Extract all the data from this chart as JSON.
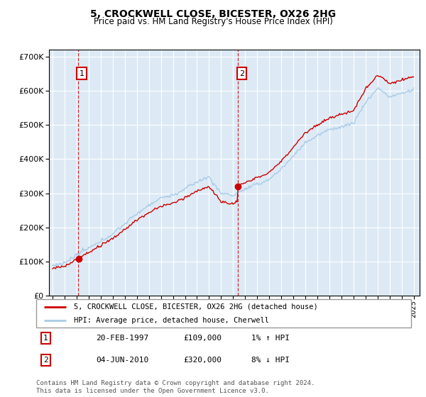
{
  "title": "5, CROCKWELL CLOSE, BICESTER, OX26 2HG",
  "subtitle": "Price paid vs. HM Land Registry's House Price Index (HPI)",
  "legend_line1": "5, CROCKWELL CLOSE, BICESTER, OX26 2HG (detached house)",
  "legend_line2": "HPI: Average price, detached house, Cherwell",
  "annotation1_label": "1",
  "annotation1_date": "20-FEB-1997",
  "annotation1_price": "£109,000",
  "annotation1_hpi": "1% ↑ HPI",
  "annotation2_label": "2",
  "annotation2_date": "04-JUN-2010",
  "annotation2_price": "£320,000",
  "annotation2_hpi": "8% ↓ HPI",
  "footnote": "Contains HM Land Registry data © Crown copyright and database right 2024.\nThis data is licensed under the Open Government Licence v3.0.",
  "sale1_year": 1997.13,
  "sale1_value": 109000,
  "sale2_year": 2010.42,
  "sale2_value": 320000,
  "hpi_color": "#a8cce8",
  "price_color": "#cc0000",
  "vline_color": "#cc0000",
  "bg_color": "#ddeaf5",
  "grid_color": "#ffffff",
  "ylim_max": 720000,
  "ylim_min": 0,
  "xmin": 1994.7,
  "xmax": 2025.5
}
